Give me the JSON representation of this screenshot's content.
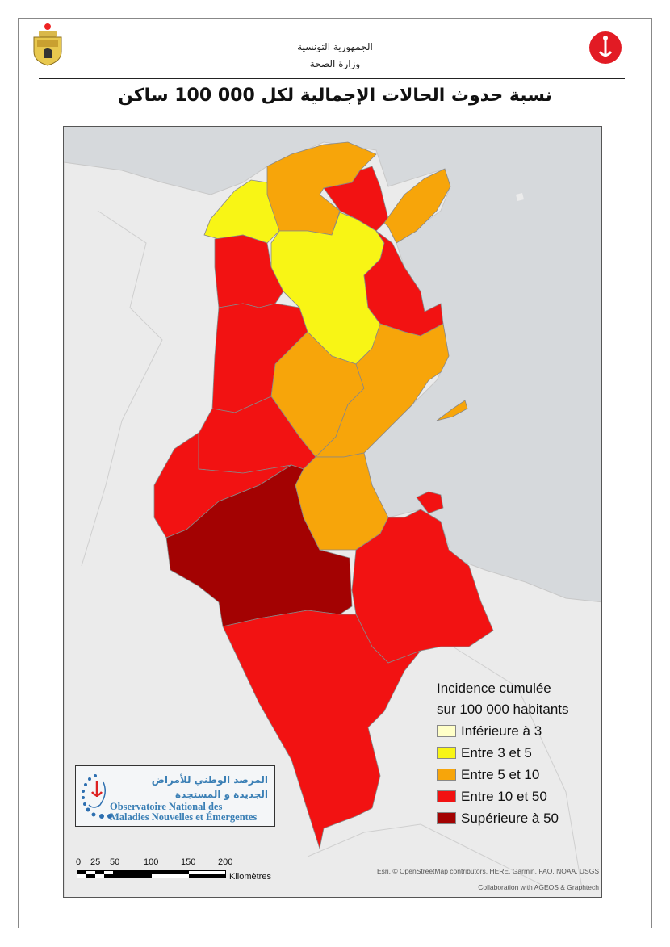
{
  "header": {
    "republic": "الجمهورية التونسية",
    "ministry": "وزارة الصحة",
    "title": "نسبة حدوث الحالات الإجمالية لكل 000 100 ساكن"
  },
  "legend": {
    "title_line1": "Incidence cumulée",
    "title_line2": "sur 100 000 habitants",
    "classes": [
      {
        "label": "Inférieure à 3",
        "color": "#ffffc8"
      },
      {
        "label": "Entre 3 et 5",
        "color": "#f8f515"
      },
      {
        "label": "Entre 5 et 10",
        "color": "#f7a50a"
      },
      {
        "label": "Entre 10 et 50",
        "color": "#f21212"
      },
      {
        "label": "Supérieure à 50",
        "color": "#a30202"
      }
    ]
  },
  "logo_onmne": {
    "arabic_line1": "المرصد الوطني للأمراض",
    "arabic_line2": "الجديدة و المستجدة",
    "french_line1": "Observatoire National des",
    "french_line2": "Maladies Nouvelles et Émergentes"
  },
  "scale_bar": {
    "ticks": [
      "0",
      "25",
      "50",
      "100",
      "150",
      "200"
    ],
    "unit": "Kilomètres"
  },
  "attribution": {
    "line1": "Esri, © OpenStreetMap contributors, HERE, Garmin, FAO, NOAA, USGS",
    "line2": "Collaboration with AGEOS & Graphtech"
  }
}
